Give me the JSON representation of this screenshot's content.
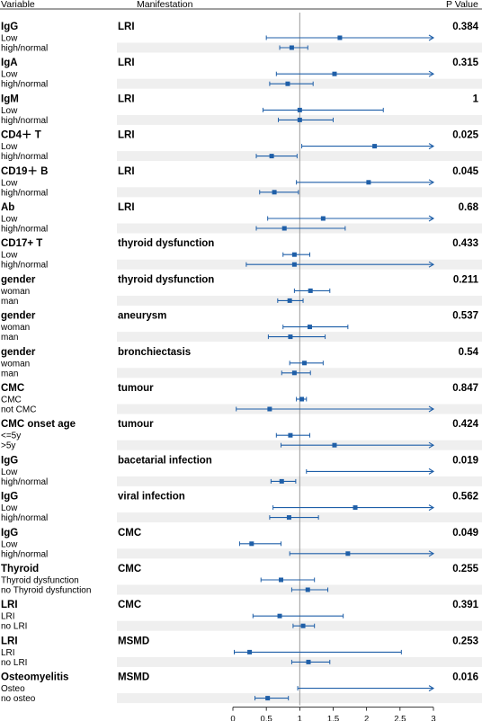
{
  "header": {
    "variable": "Variable",
    "manifestation": "Manifestation",
    "p_value": "P Value"
  },
  "chart_data": {
    "type": "forest",
    "xlim": [
      0,
      3
    ],
    "reference_line": 1,
    "x_ticks": [
      "0",
      "0.5",
      "1",
      "1.5",
      "2",
      "2.5",
      "3"
    ],
    "x_tick_values": [
      0,
      0.5,
      1,
      1.5,
      2,
      2.5,
      3
    ],
    "point_color": "#1f5fa8",
    "shade_color": "#efefef",
    "groups": [
      {
        "variable": "IgG",
        "manifestation": "LRI",
        "p_value": "0.384",
        "rows": [
          {
            "label": "Low",
            "est": 1.6,
            "lo": 0.5,
            "hi": 3.0,
            "arrow": true
          },
          {
            "label": "high/normal",
            "est": 0.88,
            "lo": 0.7,
            "hi": 1.12,
            "arrow": false
          }
        ]
      },
      {
        "variable": "IgA",
        "manifestation": "LRI",
        "p_value": "0.315",
        "rows": [
          {
            "label": "Low",
            "est": 1.52,
            "lo": 0.65,
            "hi": 3.0,
            "arrow": true
          },
          {
            "label": "high/normal",
            "est": 0.82,
            "lo": 0.55,
            "hi": 1.2,
            "arrow": false
          }
        ]
      },
      {
        "variable": "IgM",
        "manifestation": "LRI",
        "p_value": "1",
        "rows": [
          {
            "label": "Low",
            "est": 1.0,
            "lo": 0.45,
            "hi": 2.25,
            "arrow": false
          },
          {
            "label": "high/normal",
            "est": 1.0,
            "lo": 0.68,
            "hi": 1.5,
            "arrow": false
          }
        ]
      },
      {
        "variable": "CD4＋ T",
        "manifestation": "LRI",
        "p_value": "0.025",
        "rows": [
          {
            "label": "Low",
            "est": 2.12,
            "lo": 1.03,
            "hi": 3.0,
            "arrow": true
          },
          {
            "label": "high/normal",
            "est": 0.58,
            "lo": 0.35,
            "hi": 0.96,
            "arrow": false
          }
        ]
      },
      {
        "variable": "CD19＋ B",
        "manifestation": "LRI",
        "p_value": "0.045",
        "rows": [
          {
            "label": "Low",
            "est": 2.03,
            "lo": 0.95,
            "hi": 3.0,
            "arrow": true
          },
          {
            "label": "high/normal",
            "est": 0.62,
            "lo": 0.4,
            "hi": 0.98,
            "arrow": false
          }
        ]
      },
      {
        "variable": "Ab",
        "manifestation": "LRI",
        "p_value": "0.68",
        "rows": [
          {
            "label": "Low",
            "est": 1.35,
            "lo": 0.52,
            "hi": 3.0,
            "arrow": true
          },
          {
            "label": "high/normal",
            "est": 0.77,
            "lo": 0.35,
            "hi": 1.68,
            "arrow": false
          }
        ]
      },
      {
        "variable": "CD17+ T",
        "manifestation": "thyroid dysfunction",
        "p_value": "0.433",
        "rows": [
          {
            "label": "Low",
            "est": 0.92,
            "lo": 0.75,
            "hi": 1.15,
            "arrow": false
          },
          {
            "label": "high/normal",
            "est": 0.92,
            "lo": 0.2,
            "hi": 3.0,
            "arrow": true
          }
        ]
      },
      {
        "variable": "gender",
        "manifestation": "thyroid dysfunction",
        "p_value": "0.211",
        "rows": [
          {
            "label": "woman",
            "est": 1.16,
            "lo": 0.92,
            "hi": 1.45,
            "arrow": false
          },
          {
            "label": "man",
            "est": 0.85,
            "lo": 0.67,
            "hi": 1.05,
            "arrow": false
          }
        ]
      },
      {
        "variable": "gender",
        "manifestation": "aneurysm",
        "p_value": "0.537",
        "rows": [
          {
            "label": "woman",
            "est": 1.15,
            "lo": 0.75,
            "hi": 1.72,
            "arrow": false
          },
          {
            "label": "man",
            "est": 0.86,
            "lo": 0.53,
            "hi": 1.38,
            "arrow": false
          }
        ]
      },
      {
        "variable": "gender",
        "manifestation": "bronchiectasis",
        "p_value": "0.54",
        "rows": [
          {
            "label": "woman",
            "est": 1.07,
            "lo": 0.85,
            "hi": 1.35,
            "arrow": false
          },
          {
            "label": "man",
            "est": 0.92,
            "lo": 0.73,
            "hi": 1.16,
            "arrow": false
          }
        ]
      },
      {
        "variable": "CMC",
        "manifestation": "tumour",
        "p_value": "0.847",
        "rows": [
          {
            "label": "CMC",
            "est": 1.03,
            "lo": 0.95,
            "hi": 1.1,
            "arrow": false
          },
          {
            "label": "not CMC",
            "est": 0.55,
            "lo": 0.05,
            "hi": 3.0,
            "arrow": true
          }
        ]
      },
      {
        "variable": "CMC onset age",
        "manifestation": "tumour",
        "p_value": "0.424",
        "rows": [
          {
            "label": "<=5y",
            "est": 0.86,
            "lo": 0.65,
            "hi": 1.15,
            "arrow": false
          },
          {
            "label": ">5y",
            "est": 1.52,
            "lo": 0.72,
            "hi": 3.0,
            "arrow": true
          }
        ]
      },
      {
        "variable": "IgG",
        "manifestation": "bacetarial infection",
        "p_value": "0.019",
        "rows": [
          {
            "label": "Low",
            "est": null,
            "lo": 1.1,
            "hi": 3.0,
            "arrow": true
          },
          {
            "label": "high/normal",
            "est": 0.73,
            "lo": 0.57,
            "hi": 0.94,
            "arrow": false
          }
        ]
      },
      {
        "variable": "IgG",
        "manifestation": "viral infection",
        "p_value": "0.562",
        "rows": [
          {
            "label": "Low",
            "est": 1.83,
            "lo": 0.6,
            "hi": 3.0,
            "arrow": true
          },
          {
            "label": "high/normal",
            "est": 0.84,
            "lo": 0.55,
            "hi": 1.28,
            "arrow": false
          }
        ]
      },
      {
        "variable": "IgG",
        "manifestation": "CMC",
        "p_value": "0.049",
        "rows": [
          {
            "label": "Low",
            "est": 0.28,
            "lo": 0.1,
            "hi": 0.72,
            "arrow": false
          },
          {
            "label": "high/normal",
            "est": 1.72,
            "lo": 0.85,
            "hi": 3.0,
            "arrow": true
          }
        ]
      },
      {
        "variable": "Thyroid",
        "manifestation": "CMC",
        "p_value": "0.255",
        "rows": [
          {
            "label": "Thyroid dysfunction",
            "est": 0.72,
            "lo": 0.42,
            "hi": 1.22,
            "arrow": false
          },
          {
            "label": "no Thyroid dysfunction",
            "est": 1.12,
            "lo": 0.88,
            "hi": 1.42,
            "arrow": false
          }
        ]
      },
      {
        "variable": "LRI",
        "manifestation": "CMC",
        "p_value": "0.391",
        "rows": [
          {
            "label": "LRI",
            "est": 0.7,
            "lo": 0.3,
            "hi": 1.65,
            "arrow": false
          },
          {
            "label": "no LRI",
            "est": 1.05,
            "lo": 0.9,
            "hi": 1.22,
            "arrow": false
          }
        ]
      },
      {
        "variable": "LRI",
        "manifestation": "MSMD",
        "p_value": "0.253",
        "rows": [
          {
            "label": "LRI",
            "est": 0.25,
            "lo": 0.02,
            "hi": 2.52,
            "arrow": false
          },
          {
            "label": "no LRI",
            "est": 1.13,
            "lo": 0.88,
            "hi": 1.45,
            "arrow": false
          }
        ]
      },
      {
        "variable": "Osteomyelitis",
        "manifestation": "MSMD",
        "p_value": "0.016",
        "rows": [
          {
            "label": "Osteo",
            "est": null,
            "lo": 0.97,
            "hi": 3.0,
            "arrow": true
          },
          {
            "label": "no osteo",
            "est": 0.52,
            "lo": 0.33,
            "hi": 0.83,
            "arrow": false
          }
        ]
      }
    ]
  }
}
